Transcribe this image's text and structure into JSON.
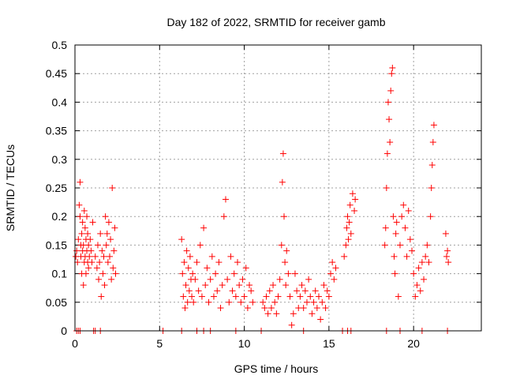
{
  "chart_data": {
    "type": "scatter",
    "title": "Day 182 of 2022, SRMTID for receiver gamb",
    "xlabel": "GPS time / hours",
    "ylabel": "SRMTID / TECUs",
    "xlim": [
      0,
      24
    ],
    "ylim": [
      0,
      0.5
    ],
    "x_ticks": [
      0,
      5,
      10,
      15,
      20
    ],
    "y_ticks": [
      0,
      0.05,
      0.1,
      0.15,
      0.2,
      0.25,
      0.3,
      0.35,
      0.4,
      0.45,
      0.5
    ],
    "grid": true,
    "marker": "+",
    "color": "#ff0000",
    "series": [
      {
        "name": "SRMTID",
        "x": [
          0.05,
          0.1,
          0.15,
          0.2,
          0.25,
          0.3,
          0.3,
          0.35,
          0.35,
          0.4,
          0.4,
          0.45,
          0.45,
          0.5,
          0.5,
          0.55,
          0.55,
          0.6,
          0.6,
          0.65,
          0.65,
          0.7,
          0.7,
          0.75,
          0.75,
          0.8,
          0.8,
          0.85,
          0.9,
          0.95,
          1.0,
          1.05,
          1.2,
          1.3,
          1.35,
          1.4,
          1.45,
          1.5,
          1.55,
          1.6,
          1.65,
          1.7,
          1.75,
          1.8,
          1.85,
          1.9,
          1.95,
          2.0,
          2.05,
          2.1,
          2.15,
          2.2,
          2.25,
          2.3,
          2.35,
          2.4,
          6.3,
          6.35,
          6.4,
          6.45,
          6.5,
          6.55,
          6.6,
          6.65,
          6.7,
          6.75,
          6.8,
          6.85,
          6.9,
          6.95,
          7.0,
          7.1,
          7.2,
          7.3,
          7.4,
          7.5,
          7.6,
          7.7,
          7.8,
          7.9,
          8.0,
          8.1,
          8.2,
          8.3,
          8.4,
          8.5,
          8.6,
          8.7,
          8.8,
          8.9,
          9.0,
          9.1,
          9.2,
          9.3,
          9.4,
          9.5,
          9.6,
          9.7,
          9.8,
          9.9,
          10.0,
          10.1,
          10.2,
          10.3,
          10.4,
          10.5,
          11.1,
          11.2,
          11.3,
          11.4,
          11.5,
          11.6,
          11.7,
          11.8,
          11.9,
          12.0,
          12.1,
          12.2,
          12.25,
          12.3,
          12.35,
          12.4,
          12.45,
          12.5,
          12.6,
          12.7,
          12.8,
          12.9,
          13.0,
          13.1,
          13.2,
          13.3,
          13.4,
          13.5,
          13.6,
          13.7,
          13.8,
          13.9,
          14.0,
          14.1,
          14.2,
          14.3,
          14.4,
          14.5,
          14.6,
          14.7,
          14.8,
          14.9,
          15.0,
          15.1,
          15.2,
          15.3,
          15.4,
          15.9,
          16.0,
          16.05,
          16.1,
          16.15,
          16.2,
          16.25,
          16.3,
          16.4,
          16.5,
          16.55,
          18.3,
          18.35,
          18.4,
          18.45,
          18.5,
          18.55,
          18.6,
          18.65,
          18.7,
          18.75,
          18.8,
          18.85,
          18.9,
          18.95,
          19.0,
          19.1,
          19.2,
          19.3,
          19.4,
          19.5,
          19.6,
          19.7,
          19.8,
          19.9,
          20.0,
          20.1,
          20.2,
          20.3,
          20.4,
          20.5,
          20.6,
          20.7,
          20.8,
          20.9,
          21.0,
          21.05,
          21.1,
          21.15,
          21.2,
          21.9,
          21.95,
          22.0,
          22.05
        ],
        "y": [
          0.13,
          0.14,
          0.12,
          0.16,
          0.22,
          0.26,
          0.2,
          0.15,
          0.13,
          0.1,
          0.17,
          0.14,
          0.19,
          0.08,
          0.15,
          0.12,
          0.21,
          0.13,
          0.18,
          0.1,
          0.16,
          0.14,
          0.2,
          0.12,
          0.17,
          0.15,
          0.11,
          0.13,
          0.16,
          0.14,
          0.12,
          0.19,
          0.13,
          0.11,
          0.15,
          0.09,
          0.12,
          0.17,
          0.06,
          0.14,
          0.1,
          0.13,
          0.08,
          0.2,
          0.15,
          0.17,
          0.12,
          0.19,
          0.13,
          0.16,
          0.09,
          0.25,
          0.11,
          0.14,
          0.18,
          0.1,
          0.16,
          0.1,
          0.06,
          0.12,
          0.04,
          0.08,
          0.14,
          0.05,
          0.11,
          0.07,
          0.13,
          0.09,
          0.06,
          0.1,
          0.05,
          0.09,
          0.12,
          0.07,
          0.15,
          0.06,
          0.18,
          0.08,
          0.11,
          0.05,
          0.09,
          0.13,
          0.06,
          0.1,
          0.07,
          0.12,
          0.04,
          0.08,
          0.2,
          0.23,
          0.09,
          0.05,
          0.13,
          0.07,
          0.1,
          0.06,
          0.12,
          0.08,
          0.05,
          0.09,
          0.06,
          0.11,
          0.04,
          0.08,
          0.07,
          0.05,
          0.05,
          0.04,
          0.06,
          0.03,
          0.07,
          0.04,
          0.08,
          0.05,
          0.03,
          0.06,
          0.09,
          0.15,
          0.26,
          0.31,
          0.2,
          0.12,
          0.08,
          0.14,
          0.1,
          0.06,
          0.01,
          0.03,
          0.1,
          0.07,
          0.04,
          0.06,
          0.08,
          0.04,
          0.07,
          0.05,
          0.09,
          0.06,
          0.03,
          0.05,
          0.07,
          0.04,
          0.06,
          0.02,
          0.05,
          0.08,
          0.04,
          0.07,
          0.06,
          0.1,
          0.12,
          0.09,
          0.11,
          0.13,
          0.15,
          0.18,
          0.2,
          0.16,
          0.19,
          0.22,
          0.17,
          0.24,
          0.21,
          0.23,
          0.15,
          0.18,
          0.25,
          0.31,
          0.4,
          0.37,
          0.33,
          0.42,
          0.45,
          0.46,
          0.2,
          0.13,
          0.1,
          0.17,
          0.19,
          0.06,
          0.15,
          0.2,
          0.22,
          0.18,
          0.13,
          0.21,
          0.16,
          0.14,
          0.1,
          0.06,
          0.08,
          0.11,
          0.07,
          0.12,
          0.09,
          0.13,
          0.15,
          0.12,
          0.2,
          0.25,
          0.29,
          0.33,
          0.36,
          0.17,
          0.13,
          0.14,
          0.12
        ]
      }
    ],
    "bottom_markers_x": [
      0.1,
      0.2,
      0.3,
      1.1,
      1.2,
      1.5,
      5.2,
      6.3,
      7.2,
      7.6,
      8.0,
      9.5,
      11.0,
      13.5,
      15.8,
      16.1,
      16.3,
      18.4,
      19.2,
      20.5,
      22.0
    ]
  }
}
